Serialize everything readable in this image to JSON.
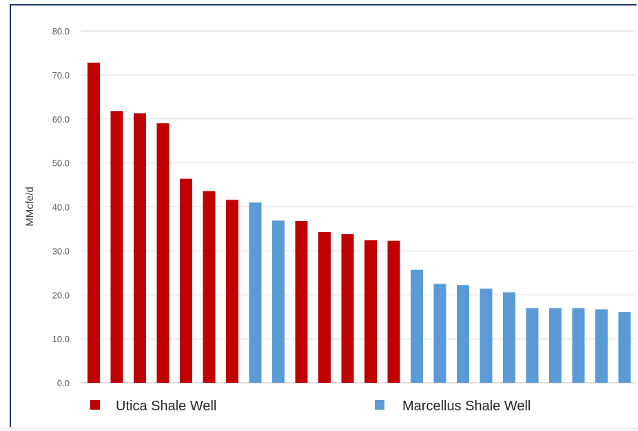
{
  "chart_data": {
    "type": "bar",
    "title": "",
    "xlabel": "",
    "ylabel": "MMcfe/d",
    "ylim": [
      0,
      80
    ],
    "yticks": [
      "0.0",
      "10.0",
      "20.0",
      "30.0",
      "40.0",
      "50.0",
      "60.0",
      "70.0",
      "80.0"
    ],
    "grid": true,
    "legend_position": "bottom",
    "series": [
      {
        "name": "Utica Shale Well",
        "color": "#c00000"
      },
      {
        "name": "Marcellus Shale Well",
        "color": "#5b9bd5"
      }
    ],
    "values": [
      72.8,
      61.8,
      61.3,
      59.0,
      46.4,
      43.6,
      41.6,
      41.0,
      36.9,
      36.8,
      34.3,
      33.8,
      32.4,
      32.3,
      25.7,
      22.5,
      22.2,
      21.4,
      20.6,
      17.0,
      17.0,
      17.0,
      16.7,
      16.1
    ],
    "bar_series": [
      0,
      0,
      0,
      0,
      0,
      0,
      0,
      1,
      1,
      0,
      0,
      0,
      0,
      0,
      1,
      1,
      1,
      1,
      1,
      1,
      1,
      1,
      1,
      1
    ]
  }
}
